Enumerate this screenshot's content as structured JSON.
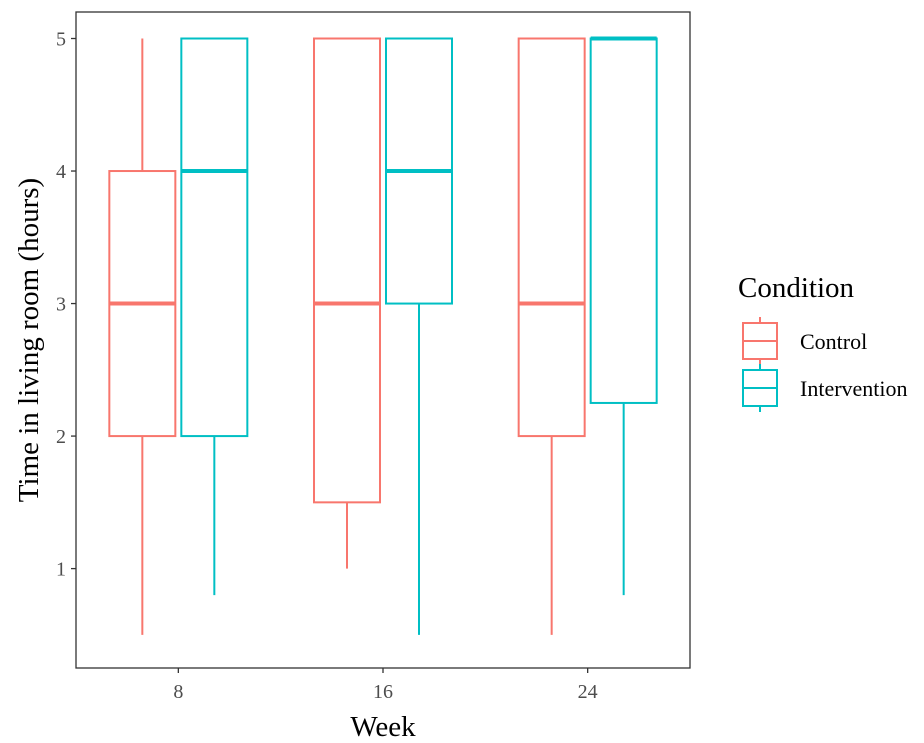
{
  "chart_data": {
    "type": "boxplot",
    "title": "",
    "xlabel": "Week",
    "ylabel": "Time in living room (hours)",
    "categories": [
      "8",
      "16",
      "24"
    ],
    "yticks": [
      "1",
      "2",
      "3",
      "4",
      "5"
    ],
    "ylim": [
      0.25,
      5.2
    ],
    "grid": false,
    "legend": {
      "title": "Condition",
      "placement": "right"
    },
    "series": [
      {
        "name": "Control",
        "color": "#F8766D",
        "boxes": [
          {
            "category": "8",
            "min": 0.5,
            "q1": 2.0,
            "median": 3.0,
            "q3": 4.0,
            "max": 5.0
          },
          {
            "category": "16",
            "min": 1.0,
            "q1": 1.5,
            "median": 3.0,
            "q3": 5.0,
            "max": 5.0
          },
          {
            "category": "24",
            "min": 0.5,
            "q1": 2.0,
            "median": 3.0,
            "q3": 5.0,
            "max": 5.0
          }
        ]
      },
      {
        "name": "Intervention",
        "color": "#00BFC4",
        "boxes": [
          {
            "category": "8",
            "min": 0.8,
            "q1": 2.0,
            "median": 4.0,
            "q3": 5.0,
            "max": 5.0
          },
          {
            "category": "16",
            "min": 0.5,
            "q1": 3.0,
            "median": 4.0,
            "q3": 5.0,
            "max": 5.0
          },
          {
            "category": "24",
            "min": 0.8,
            "q1": 2.25,
            "median": 5.0,
            "q3": 5.0,
            "max": 5.0
          }
        ]
      }
    ]
  }
}
